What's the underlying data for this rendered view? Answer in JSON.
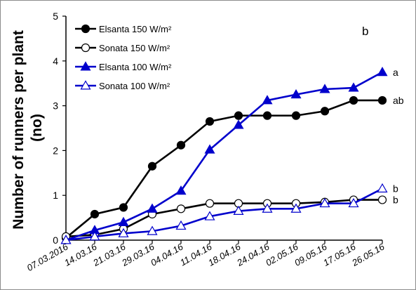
{
  "chart_data": {
    "type": "line",
    "panel_label": "b",
    "ylabel": "Number of runners per plant (no)",
    "ylabel_lines": [
      "Number of runners per plant",
      "(no)"
    ],
    "ylim": [
      0,
      5
    ],
    "yticks": [
      "0",
      "1",
      "2",
      "3",
      "4",
      "5"
    ],
    "categories": [
      "07.03.2016",
      "14.03.16",
      "21.03.16",
      "29.03.16",
      "04.04.16",
      "11.04.16",
      "18.04.16",
      "24.04.16",
      "02.05.16",
      "09.05.16",
      "17.05.16",
      "26.05.16"
    ],
    "legend_position": "top-left",
    "grid": false,
    "series": [
      {
        "name": "Elsanta 150 W/m²",
        "color": "#000000",
        "marker": "circle",
        "filled": true,
        "values": [
          0.05,
          0.58,
          0.73,
          1.65,
          2.12,
          2.65,
          2.78,
          2.78,
          2.78,
          2.88,
          3.12,
          3.12
        ],
        "end_label": "ab"
      },
      {
        "name": "Sonata 150 W/m²",
        "color": "#000000",
        "marker": "circle",
        "filled": false,
        "values": [
          0.08,
          0.12,
          0.25,
          0.58,
          0.7,
          0.82,
          0.82,
          0.82,
          0.82,
          0.85,
          0.9,
          0.9
        ],
        "end_label": "b"
      },
      {
        "name": "Elsanta 100 W/m²",
        "color": "#0000cc",
        "marker": "triangle",
        "filled": true,
        "values": [
          0.0,
          0.22,
          0.4,
          0.7,
          1.1,
          2.02,
          2.57,
          3.12,
          3.25,
          3.37,
          3.4,
          3.75
        ],
        "end_label": "a"
      },
      {
        "name": "Sonata 100 W/m²",
        "color": "#0000cc",
        "marker": "triangle",
        "filled": false,
        "values": [
          0.0,
          0.08,
          0.15,
          0.2,
          0.32,
          0.53,
          0.65,
          0.7,
          0.7,
          0.82,
          0.82,
          1.15
        ],
        "end_label": "b"
      }
    ]
  }
}
